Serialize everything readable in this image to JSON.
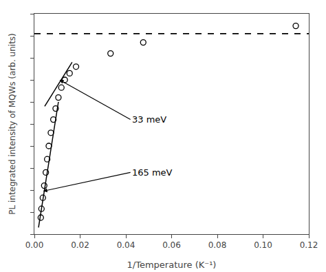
{
  "chart_data": {
    "type": "scatter",
    "title": "",
    "xlabel": "1/Temperature (K⁻¹)",
    "ylabel": "PL integrated intensity of MQWs (arb. units)",
    "xlim": [
      0.0,
      0.12
    ],
    "ylim": [
      0.0,
      1.0
    ],
    "xticks": [
      {
        "value": 0.0,
        "label": "0.00"
      },
      0.02,
      0.04,
      0.06,
      0.08,
      {
        "value": 0.1,
        "label": "0.10"
      },
      0.12
    ],
    "yticks": [
      0.0,
      0.1,
      0.2,
      0.3,
      0.4,
      0.5,
      0.6,
      0.7,
      0.8,
      0.9,
      1.0
    ],
    "tick_labels": "x",
    "grid": false,
    "series": [
      {
        "type": "scatter",
        "marker": "open_circle",
        "color": "#000000",
        "x": [
          0.1143,
          0.0476,
          0.0333,
          0.0182,
          0.0154,
          0.0133,
          0.0118,
          0.0105,
          0.0093,
          0.0083,
          0.0072,
          0.0063,
          0.0056,
          0.005,
          0.0043,
          0.0037,
          0.0031,
          0.0028
        ],
        "values": [
          0.945,
          0.87,
          0.82,
          0.76,
          0.73,
          0.7,
          0.665,
          0.62,
          0.57,
          0.52,
          0.46,
          0.4,
          0.34,
          0.28,
          0.22,
          0.165,
          0.115,
          0.075
        ]
      },
      {
        "type": "line",
        "line_style": "solid",
        "color": "#000000",
        "x": [
          0.0045,
          0.0165
        ],
        "values": [
          0.58,
          0.78
        ]
      },
      {
        "type": "line",
        "line_style": "solid",
        "color": "#000000",
        "x": [
          0.0018,
          0.0105
        ],
        "values": [
          0.03,
          0.6
        ]
      }
    ],
    "hlines": [
      {
        "y": 0.91,
        "color": "#000000",
        "line_style": "dashed"
      }
    ],
    "annotations": [
      {
        "text": "33 meV",
        "xy": [
          0.011,
          0.7
        ],
        "xytext": [
          0.042,
          0.52
        ]
      },
      {
        "text": "165 meV",
        "xy": [
          0.0038,
          0.195
        ],
        "xytext": [
          0.042,
          0.28
        ]
      }
    ]
  }
}
